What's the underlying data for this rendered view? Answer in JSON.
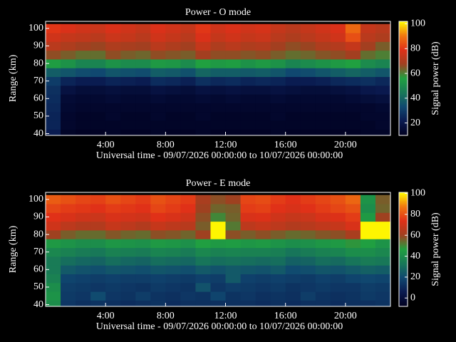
{
  "chart_data": [
    {
      "type": "heatmap",
      "title": "Power - O mode",
      "xlabel": "Universal time - 09/07/2026 00:00:00 to 10/07/2026 00:00:00",
      "ylabel": "Range (km)",
      "zlabel": "Signal power (dB)",
      "xlim": [
        0,
        23
      ],
      "ylim": [
        39,
        104
      ],
      "zlim": [
        10,
        102
      ],
      "xticks": [
        {
          "value": 4,
          "label": "4:00"
        },
        {
          "value": 8,
          "label": "8:00"
        },
        {
          "value": 12,
          "label": "12:00"
        },
        {
          "value": 16,
          "label": "16:00"
        },
        {
          "value": 20,
          "label": "20:00"
        }
      ],
      "yticks": [
        40,
        50,
        60,
        70,
        80,
        90,
        100
      ],
      "zticks": [
        20,
        40,
        60,
        80,
        100
      ],
      "colormap": [
        "#000020",
        "#0a1a50",
        "#104870",
        "#187858",
        "#20a040",
        "#a04020",
        "#e03018",
        "#f07810",
        "#ffff00"
      ],
      "x": [
        0,
        1,
        2,
        3,
        4,
        5,
        6,
        7,
        8,
        9,
        10,
        11,
        12,
        13,
        14,
        15,
        16,
        17,
        18,
        19,
        20,
        21,
        22
      ],
      "y": [
        40,
        45,
        50,
        55,
        60,
        65,
        70,
        75,
        80,
        85,
        90,
        95,
        100
      ],
      "z": [
        [
          22,
          12,
          11,
          11,
          12,
          11,
          11,
          12,
          11,
          11,
          12,
          11,
          11,
          11,
          11,
          12,
          11,
          11,
          11,
          11,
          11,
          12,
          12
        ],
        [
          24,
          13,
          12,
          12,
          12,
          12,
          12,
          12,
          12,
          12,
          12,
          12,
          12,
          12,
          12,
          12,
          12,
          12,
          12,
          12,
          12,
          12,
          13
        ],
        [
          24,
          13,
          12,
          12,
          13,
          12,
          12,
          13,
          12,
          12,
          13,
          12,
          12,
          12,
          12,
          13,
          12,
          12,
          12,
          12,
          12,
          13,
          13
        ],
        [
          25,
          14,
          13,
          13,
          13,
          13,
          13,
          13,
          13,
          13,
          13,
          13,
          13,
          13,
          13,
          13,
          13,
          13,
          13,
          13,
          13,
          13,
          14
        ],
        [
          26,
          15,
          14,
          14,
          15,
          14,
          14,
          15,
          14,
          14,
          15,
          14,
          15,
          14,
          14,
          15,
          14,
          14,
          14,
          14,
          15,
          16,
          17
        ],
        [
          27,
          18,
          16,
          16,
          17,
          16,
          16,
          18,
          17,
          16,
          18,
          17,
          18,
          17,
          17,
          18,
          17,
          16,
          16,
          17,
          18,
          20,
          21
        ],
        [
          30,
          24,
          22,
          22,
          24,
          23,
          22,
          26,
          25,
          23,
          27,
          25,
          26,
          24,
          25,
          24,
          22,
          22,
          23,
          25,
          26,
          27,
          25
        ],
        [
          38,
          36,
          34,
          33,
          36,
          35,
          34,
          38,
          37,
          35,
          40,
          38,
          38,
          37,
          38,
          36,
          33,
          34,
          36,
          38,
          40,
          38,
          36
        ],
        [
          55,
          52,
          48,
          48,
          52,
          50,
          50,
          54,
          53,
          50,
          56,
          54,
          55,
          52,
          54,
          52,
          48,
          50,
          52,
          54,
          56,
          50,
          48
        ],
        [
          66,
          64,
          62,
          62,
          66,
          64,
          63,
          66,
          65,
          64,
          68,
          66,
          66,
          65,
          66,
          64,
          62,
          63,
          65,
          66,
          68,
          62,
          60
        ],
        [
          72,
          70,
          68,
          67,
          70,
          69,
          68,
          72,
          70,
          68,
          74,
          70,
          72,
          70,
          71,
          68,
          66,
          67,
          70,
          71,
          74,
          68,
          64
        ],
        [
          76,
          74,
          73,
          72,
          75,
          74,
          72,
          76,
          74,
          72,
          78,
          74,
          76,
          74,
          75,
          72,
          70,
          72,
          74,
          76,
          84,
          72,
          70
        ],
        [
          80,
          78,
          76,
          75,
          78,
          76,
          74,
          78,
          76,
          74,
          80,
          76,
          78,
          76,
          77,
          74,
          72,
          74,
          76,
          78,
          88,
          74,
          72
        ]
      ]
    },
    {
      "type": "heatmap",
      "title": "Power - E mode",
      "xlabel": "Universal time - 09/07/2026 00:00:00 to 10/07/2026 00:00:00",
      "ylabel": "Range (km)",
      "zlabel": "Signal power (dB)",
      "xlim": [
        0,
        23
      ],
      "ylim": [
        39,
        104
      ],
      "zlim": [
        -8,
        101
      ],
      "xticks": [
        {
          "value": 4,
          "label": "4:00"
        },
        {
          "value": 8,
          "label": "8:00"
        },
        {
          "value": 12,
          "label": "12:00"
        },
        {
          "value": 16,
          "label": "16:00"
        },
        {
          "value": 20,
          "label": "20:00"
        }
      ],
      "yticks": [
        40,
        50,
        60,
        70,
        80,
        90,
        100
      ],
      "zticks": [
        0,
        20,
        40,
        60,
        80,
        100
      ],
      "colormap": [
        "#000020",
        "#0a1a50",
        "#104870",
        "#187858",
        "#20a040",
        "#a04020",
        "#e03018",
        "#f07810",
        "#ffff00"
      ],
      "x": [
        0,
        1,
        2,
        3,
        4,
        5,
        6,
        7,
        8,
        9,
        10,
        11,
        12,
        13,
        14,
        15,
        16,
        17,
        18,
        19,
        20,
        21,
        22
      ],
      "y": [
        40,
        45,
        50,
        55,
        60,
        65,
        70,
        75,
        80,
        85,
        90,
        95,
        100
      ],
      "z": [
        [
          40,
          14,
          12,
          13,
          12,
          11,
          12,
          13,
          11,
          12,
          12,
          12,
          12,
          12,
          11,
          12,
          11,
          12,
          12,
          11,
          12,
          12,
          13
        ],
        [
          42,
          15,
          14,
          20,
          14,
          13,
          16,
          13,
          12,
          14,
          13,
          18,
          13,
          14,
          12,
          13,
          12,
          16,
          13,
          12,
          13,
          15,
          14
        ],
        [
          40,
          16,
          15,
          14,
          15,
          14,
          13,
          15,
          14,
          13,
          22,
          14,
          16,
          15,
          14,
          15,
          13,
          14,
          15,
          14,
          14,
          16,
          15
        ],
        [
          36,
          18,
          17,
          16,
          17,
          16,
          16,
          17,
          16,
          15,
          17,
          16,
          24,
          17,
          16,
          17,
          16,
          15,
          17,
          16,
          18,
          19,
          18
        ],
        [
          34,
          24,
          22,
          21,
          23,
          22,
          21,
          23,
          22,
          21,
          24,
          22,
          24,
          23,
          22,
          24,
          20,
          21,
          23,
          22,
          24,
          26,
          25
        ],
        [
          34,
          30,
          28,
          27,
          30,
          28,
          27,
          30,
          29,
          28,
          32,
          30,
          31,
          30,
          29,
          30,
          26,
          27,
          30,
          29,
          32,
          34,
          33
        ],
        [
          38,
          36,
          34,
          33,
          36,
          35,
          34,
          37,
          36,
          34,
          38,
          36,
          37,
          36,
          36,
          35,
          32,
          34,
          36,
          37,
          40,
          40,
          38
        ],
        [
          44,
          42,
          40,
          40,
          43,
          42,
          41,
          44,
          43,
          41,
          46,
          44,
          45,
          43,
          44,
          42,
          40,
          41,
          43,
          44,
          48,
          46,
          42
        ],
        [
          60,
          56,
          54,
          54,
          57,
          55,
          54,
          58,
          57,
          55,
          60,
          100,
          58,
          56,
          58,
          56,
          54,
          55,
          57,
          58,
          62,
          100,
          100
        ],
        [
          70,
          66,
          64,
          64,
          68,
          66,
          64,
          68,
          66,
          65,
          56,
          100,
          52,
          66,
          68,
          66,
          64,
          65,
          67,
          68,
          72,
          100,
          100
        ],
        [
          74,
          72,
          70,
          69,
          72,
          71,
          70,
          74,
          72,
          70,
          58,
          50,
          55,
          72,
          73,
          70,
          68,
          69,
          72,
          73,
          76,
          44,
          60
        ],
        [
          78,
          76,
          75,
          74,
          76,
          75,
          74,
          78,
          76,
          74,
          60,
          55,
          56,
          76,
          77,
          74,
          72,
          74,
          76,
          78,
          80,
          40,
          55
        ],
        [
          82,
          80,
          78,
          77,
          80,
          78,
          76,
          80,
          78,
          76,
          62,
          58,
          60,
          78,
          79,
          76,
          74,
          76,
          78,
          80,
          84,
          42,
          56
        ]
      ]
    }
  ]
}
